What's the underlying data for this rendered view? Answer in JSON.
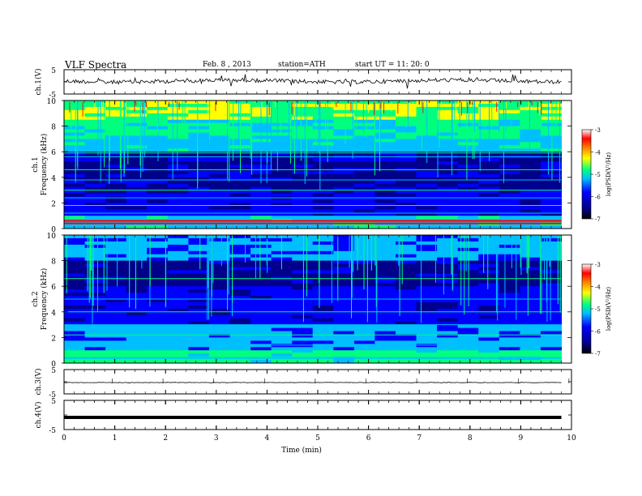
{
  "header": {
    "title": "VLF Spectra",
    "date": "Feb. 8 , 2013",
    "station": "station=ATH",
    "start_ut": "start  UT =  11: 20: 0"
  },
  "chart_data": [
    {
      "type": "line",
      "ylabel": "ch.1(V)",
      "yticks": [
        "5",
        "-5"
      ],
      "ylim": [
        -5,
        5
      ],
      "description_color": "#000000"
    },
    {
      "type": "heatmap",
      "ylabel_line1": "ch.1",
      "ylabel_line2": "Frequency (kHz)",
      "yticks": [
        "0",
        "2",
        "4",
        "6",
        "8",
        "10"
      ],
      "ylim": [
        0,
        10
      ],
      "colorbar": {
        "label": "log(PSD(V²/Hz)",
        "ticks": [
          "-3",
          "-4",
          "-5",
          "-6",
          "-7"
        ],
        "range": [
          -7,
          -3
        ]
      }
    },
    {
      "type": "heatmap",
      "ylabel_line1": "ch.2",
      "ylabel_line2": "Frequency (kHz)",
      "yticks": [
        "0",
        "2",
        "4",
        "6",
        "8",
        "10"
      ],
      "ylim": [
        0,
        10
      ],
      "colorbar": {
        "label": "log(PSD(V²/Hz)",
        "ticks": [
          "-3",
          "-4",
          "-5",
          "-6",
          "-7"
        ],
        "range": [
          -7,
          -3
        ]
      }
    },
    {
      "type": "line",
      "ylabel": "ch.3(V)",
      "yticks": [
        "5",
        "-5"
      ],
      "ylim": [
        -5,
        5
      ]
    },
    {
      "type": "line",
      "ylabel": "ch.4(V)",
      "yticks": [
        "5",
        "-5"
      ],
      "ylim": [
        -5,
        5
      ]
    }
  ],
  "x_axis": {
    "label": "Time  (min)",
    "ticks": [
      "0",
      "1",
      "2",
      "3",
      "4",
      "5",
      "6",
      "7",
      "8",
      "9",
      "10"
    ],
    "xlim": [
      0,
      10
    ],
    "data_end": 9.8
  },
  "colors": {
    "colormap": [
      "#000000",
      "#00008b",
      "#0000ff",
      "#00bfff",
      "#00ff7f",
      "#ffff00",
      "#ff7f00",
      "#ff0000",
      "#ffffff"
    ]
  }
}
